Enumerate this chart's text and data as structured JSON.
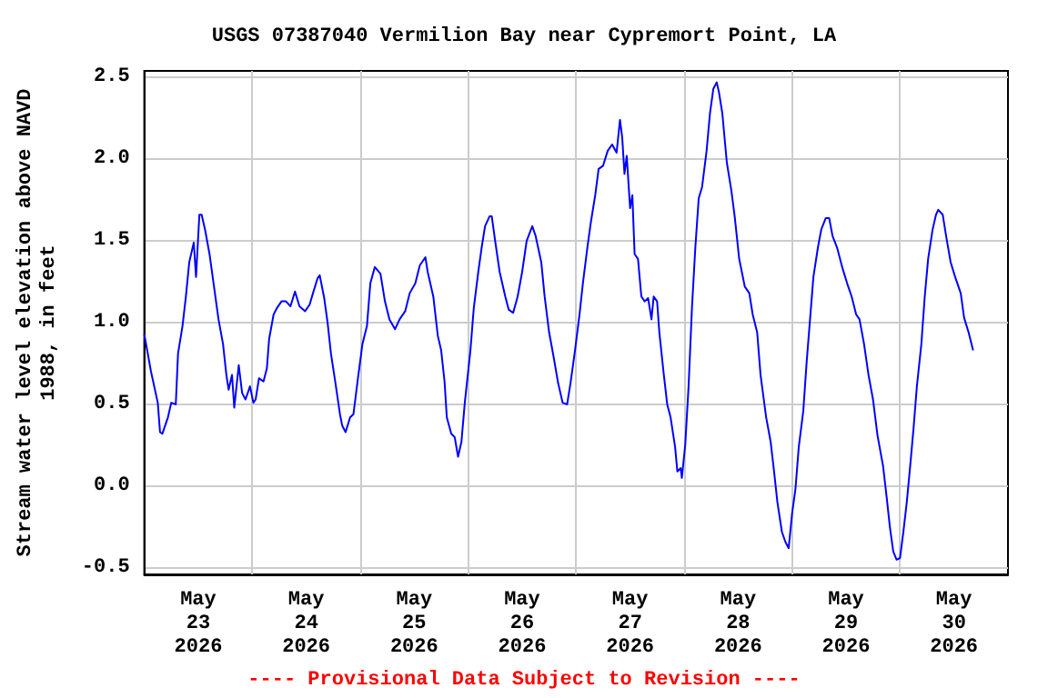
{
  "chart_data": {
    "type": "line",
    "title": "USGS 07387040 Vermilion Bay near Cypremort Point, LA",
    "ylabel": "Stream water level elevation above NAVD\n1988, in feet",
    "annotations": [
      "---- Provisional Data Subject to Revision ----"
    ],
    "xlim": [
      "2026-05-23T00:00",
      "2026-05-31T00:00"
    ],
    "xticks": [
      {
        "value": "2026-05-24T00:00",
        "label": null
      },
      {
        "value": "2026-05-25T00:00",
        "label": null
      },
      {
        "value": "2026-05-26T00:00",
        "label": null
      },
      {
        "value": "2026-05-27T00:00",
        "label": null
      },
      {
        "value": "2026-05-28T00:00",
        "label": null
      },
      {
        "value": "2026-05-29T00:00",
        "label": null
      },
      {
        "value": "2026-05-30T00:00",
        "label": null
      },
      {
        "value": "2026-05-23T12:00",
        "label": "May\n23\n2026"
      },
      {
        "value": "2026-05-24T12:00",
        "label": "May\n24\n2026"
      },
      {
        "value": "2026-05-25T12:00",
        "label": "May\n25\n2026"
      },
      {
        "value": "2026-05-26T12:00",
        "label": "May\n26\n2026"
      },
      {
        "value": "2026-05-27T12:00",
        "label": "May\n27\n2026"
      },
      {
        "value": "2026-05-28T12:00",
        "label": "May\n28\n2026"
      },
      {
        "value": "2026-05-29T12:00",
        "label": "May\n29\n2026"
      },
      {
        "value": "2026-05-30T12:00",
        "label": "May\n30\n2026"
      }
    ],
    "ylim": [
      -0.54,
      2.54
    ],
    "yticks": [
      -0.5,
      {
        "value": 0,
        "label": "0.0"
      },
      0.5,
      {
        "value": 1,
        "label": "1.0"
      },
      1.5,
      {
        "value": 2,
        "label": "2.0"
      },
      2.5
    ],
    "grid": true,
    "marker": "none",
    "line_style": "solid",
    "series": [
      {
        "color": "#0000ff",
        "x": [
          "2026-05-23T00:00",
          "2026-05-23T01:30",
          "2026-05-23T03:00",
          "2026-05-23T03:30",
          "2026-05-23T04:00",
          "2026-05-23T05:15",
          "2026-05-23T06:00",
          "2026-05-23T07:00",
          "2026-05-23T07:30",
          "2026-05-23T08:30",
          "2026-05-23T09:15",
          "2026-05-23T10:00",
          "2026-05-23T11:00",
          "2026-05-23T11:30",
          "2026-05-23T12:15",
          "2026-05-23T12:45",
          "2026-05-23T13:30",
          "2026-05-23T14:30",
          "2026-05-23T15:30",
          "2026-05-23T16:30",
          "2026-05-23T17:30",
          "2026-05-23T18:15",
          "2026-05-23T18:45",
          "2026-05-23T19:30",
          "2026-05-23T20:00",
          "2026-05-23T21:00",
          "2026-05-23T21:45",
          "2026-05-23T22:30",
          "2026-05-23T23:30",
          "2026-05-24T00:15",
          "2026-05-24T00:45",
          "2026-05-24T01:30",
          "2026-05-24T02:30",
          "2026-05-24T03:15",
          "2026-05-24T03:45",
          "2026-05-24T04:45",
          "2026-05-24T05:30",
          "2026-05-24T06:30",
          "2026-05-24T07:30",
          "2026-05-24T08:30",
          "2026-05-24T09:30",
          "2026-05-24T10:30",
          "2026-05-24T11:45",
          "2026-05-24T12:45",
          "2026-05-24T13:30",
          "2026-05-24T14:30",
          "2026-05-24T15:00",
          "2026-05-24T16:00",
          "2026-05-24T16:45",
          "2026-05-24T17:30",
          "2026-05-24T18:30",
          "2026-05-24T19:30",
          "2026-05-24T20:00",
          "2026-05-24T20:45",
          "2026-05-24T21:45",
          "2026-05-24T22:30",
          "2026-05-24T23:30",
          "2026-05-25T00:30",
          "2026-05-25T01:30",
          "2026-05-25T02:15",
          "2026-05-25T03:15",
          "2026-05-25T04:30",
          "2026-05-25T05:30",
          "2026-05-25T06:30",
          "2026-05-25T07:45",
          "2026-05-25T08:45",
          "2026-05-25T10:00",
          "2026-05-25T11:00",
          "2026-05-25T12:15",
          "2026-05-25T13:15",
          "2026-05-25T14:30",
          "2026-05-25T15:00",
          "2026-05-25T16:15",
          "2026-05-25T17:15",
          "2026-05-25T18:00",
          "2026-05-25T18:45",
          "2026-05-25T19:15",
          "2026-05-25T20:15",
          "2026-05-25T21:00",
          "2026-05-25T21:45",
          "2026-05-25T22:30",
          "2026-05-25T23:15",
          "2026-05-26T00:30",
          "2026-05-26T01:15",
          "2026-05-26T02:15",
          "2026-05-26T03:00",
          "2026-05-26T03:45",
          "2026-05-26T04:45",
          "2026-05-26T05:15",
          "2026-05-26T06:00",
          "2026-05-26T07:00",
          "2026-05-26T08:15",
          "2026-05-26T09:00",
          "2026-05-26T10:00",
          "2026-05-26T11:00",
          "2026-05-26T12:00",
          "2026-05-26T13:00",
          "2026-05-26T14:15",
          "2026-05-26T15:00",
          "2026-05-26T16:15",
          "2026-05-26T17:00",
          "2026-05-26T18:00",
          "2026-05-26T19:00",
          "2026-05-26T20:00",
          "2026-05-26T21:00",
          "2026-05-26T22:00",
          "2026-05-26T22:45",
          "2026-05-26T23:45",
          "2026-05-27T00:45",
          "2026-05-27T01:30",
          "2026-05-27T02:30",
          "2026-05-27T03:15",
          "2026-05-27T04:15",
          "2026-05-27T05:00",
          "2026-05-27T06:00",
          "2026-05-27T07:00",
          "2026-05-27T08:00",
          "2026-05-27T09:00",
          "2026-05-27T09:45",
          "2026-05-27T10:15",
          "2026-05-27T10:45",
          "2026-05-27T11:15",
          "2026-05-27T12:00",
          "2026-05-27T12:30",
          "2026-05-27T13:00",
          "2026-05-27T13:45",
          "2026-05-27T14:30",
          "2026-05-27T15:15",
          "2026-05-27T16:00",
          "2026-05-27T16:45",
          "2026-05-27T17:15",
          "2026-05-27T18:00",
          "2026-05-27T18:30",
          "2026-05-27T19:30",
          "2026-05-27T20:15",
          "2026-05-27T21:00",
          "2026-05-27T22:00",
          "2026-05-27T22:30",
          "2026-05-27T23:15",
          "2026-05-27T23:30",
          "2026-05-28T00:15",
          "2026-05-28T01:00",
          "2026-05-28T01:45",
          "2026-05-28T02:30",
          "2026-05-28T03:15",
          "2026-05-28T04:00",
          "2026-05-28T05:00",
          "2026-05-28T05:45",
          "2026-05-28T06:30",
          "2026-05-28T07:15",
          "2026-05-28T07:45",
          "2026-05-28T08:30",
          "2026-05-28T09:30",
          "2026-05-28T10:30",
          "2026-05-28T11:15",
          "2026-05-28T12:15",
          "2026-05-28T13:30",
          "2026-05-28T14:30",
          "2026-05-28T15:15",
          "2026-05-28T16:15",
          "2026-05-28T17:00",
          "2026-05-28T18:15",
          "2026-05-28T19:15",
          "2026-05-28T20:00",
          "2026-05-28T20:45",
          "2026-05-28T21:45",
          "2026-05-28T22:30",
          "2026-05-28T23:15",
          "2026-05-29T00:00",
          "2026-05-29T00:45",
          "2026-05-29T01:30",
          "2026-05-29T02:30",
          "2026-05-29T03:15",
          "2026-05-29T04:00",
          "2026-05-29T04:45",
          "2026-05-29T05:45",
          "2026-05-29T06:30",
          "2026-05-29T07:30",
          "2026-05-29T08:15",
          "2026-05-29T09:00",
          "2026-05-29T10:00",
          "2026-05-29T11:15",
          "2026-05-29T12:15",
          "2026-05-29T13:15",
          "2026-05-29T14:15",
          "2026-05-29T15:00",
          "2026-05-29T16:00",
          "2026-05-29T17:00",
          "2026-05-29T18:00",
          "2026-05-29T19:00",
          "2026-05-29T20:15",
          "2026-05-29T21:00",
          "2026-05-29T21:45",
          "2026-05-29T22:30",
          "2026-05-29T23:15",
          "2026-05-30T00:00",
          "2026-05-30T00:45",
          "2026-05-30T01:30",
          "2026-05-30T02:15",
          "2026-05-30T03:00",
          "2026-05-30T03:45",
          "2026-05-30T04:45",
          "2026-05-30T05:30",
          "2026-05-30T06:15",
          "2026-05-30T07:15",
          "2026-05-30T08:00",
          "2026-05-30T08:30",
          "2026-05-30T09:30",
          "2026-05-30T10:15",
          "2026-05-30T11:15",
          "2026-05-30T12:15",
          "2026-05-30T13:30",
          "2026-05-30T14:15",
          "2026-05-30T15:15",
          "2026-05-30T16:15"
        ],
        "values": [
          0.93,
          0.7,
          0.51,
          0.33,
          0.32,
          0.42,
          0.51,
          0.5,
          0.81,
          0.98,
          1.16,
          1.37,
          1.49,
          1.28,
          1.66,
          1.66,
          1.57,
          1.42,
          1.22,
          1.02,
          0.87,
          0.68,
          0.59,
          0.68,
          0.48,
          0.74,
          0.57,
          0.53,
          0.61,
          0.51,
          0.53,
          0.66,
          0.64,
          0.72,
          0.9,
          1.05,
          1.09,
          1.13,
          1.13,
          1.1,
          1.19,
          1.1,
          1.07,
          1.11,
          1.18,
          1.27,
          1.29,
          1.15,
          1.0,
          0.81,
          0.63,
          0.44,
          0.37,
          0.33,
          0.42,
          0.44,
          0.66,
          0.87,
          0.98,
          1.24,
          1.34,
          1.3,
          1.13,
          1.02,
          0.96,
          1.02,
          1.07,
          1.18,
          1.24,
          1.35,
          1.4,
          1.31,
          1.16,
          0.92,
          0.83,
          0.64,
          0.42,
          0.32,
          0.3,
          0.18,
          0.27,
          0.51,
          0.83,
          1.09,
          1.31,
          1.46,
          1.59,
          1.65,
          1.65,
          1.5,
          1.31,
          1.16,
          1.08,
          1.06,
          1.16,
          1.31,
          1.5,
          1.59,
          1.53,
          1.37,
          1.16,
          0.94,
          0.79,
          0.63,
          0.51,
          0.5,
          0.63,
          0.83,
          1.05,
          1.24,
          1.46,
          1.61,
          1.78,
          1.94,
          1.96,
          2.05,
          2.09,
          2.04,
          2.24,
          2.13,
          1.91,
          2.02,
          1.7,
          1.78,
          1.42,
          1.39,
          1.16,
          1.13,
          1.15,
          1.02,
          1.16,
          1.13,
          0.94,
          0.68,
          0.5,
          0.42,
          0.24,
          0.09,
          0.11,
          0.05,
          0.25,
          0.61,
          1.09,
          1.46,
          1.76,
          1.83,
          2.05,
          2.28,
          2.43,
          2.47,
          2.41,
          2.28,
          1.98,
          1.81,
          1.65,
          1.39,
          1.22,
          1.18,
          1.05,
          0.94,
          0.68,
          0.42,
          0.27,
          0.09,
          -0.1,
          -0.28,
          -0.34,
          -0.38,
          -0.17,
          -0.02,
          0.24,
          0.46,
          0.76,
          1.02,
          1.28,
          1.46,
          1.57,
          1.64,
          1.64,
          1.53,
          1.46,
          1.33,
          1.24,
          1.16,
          1.05,
          1.02,
          0.87,
          0.68,
          0.53,
          0.31,
          0.12,
          -0.06,
          -0.25,
          -0.4,
          -0.45,
          -0.44,
          -0.28,
          -0.1,
          0.12,
          0.35,
          0.61,
          0.87,
          1.16,
          1.39,
          1.57,
          1.66,
          1.69,
          1.66,
          1.53,
          1.37,
          1.28,
          1.18,
          1.03,
          0.94,
          0.83
        ]
      }
    ]
  }
}
